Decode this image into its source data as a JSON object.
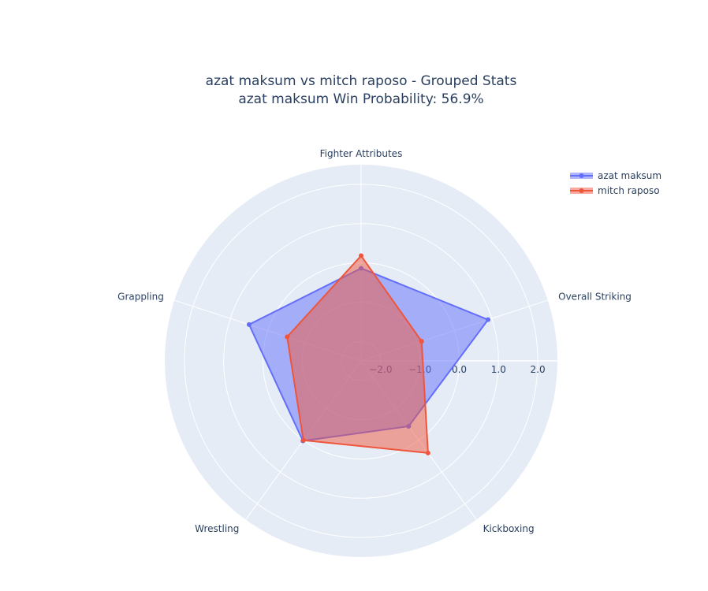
{
  "chart_data": {
    "type": "radar",
    "title": "azat maksum vs mitch raposo - Grouped Stats",
    "subtitle": "azat maksum Win Probability: 56.9%",
    "categories": [
      "Fighter Attributes",
      "Overall Striking",
      "Kickboxing",
      "Wrestling",
      "Grappling"
    ],
    "series": [
      {
        "name": "azat maksum",
        "color": "#636efa",
        "values": [
          -0.14,
          0.9,
          -0.44,
          0.02,
          0.5
        ]
      },
      {
        "name": "mitch raposo",
        "color": "#ef553b",
        "values": [
          0.18,
          -0.88,
          0.4,
          0.0,
          -0.52
        ]
      }
    ],
    "rlim": [
      -2.5,
      2.5
    ],
    "rticks": [
      {
        "value": -2,
        "label": "−2.0"
      },
      {
        "value": -1,
        "label": "−1.0"
      },
      {
        "value": 0,
        "label": "0.0"
      },
      {
        "value": 1,
        "label": "1.0"
      },
      {
        "value": 2,
        "label": "2.0"
      }
    ],
    "grid": true,
    "legend": "top-right"
  }
}
